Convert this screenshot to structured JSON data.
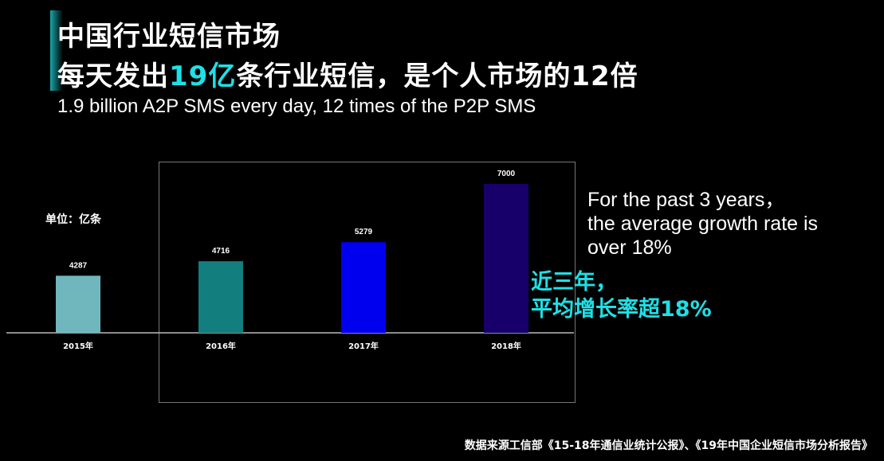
{
  "title": {
    "line1": "中国行业短信市场",
    "line2_pre": "每天发出",
    "line2_highlight": "19亿",
    "line2_post": "条行业短信，是个人市场的12倍",
    "subtitle": "1.9 billion A2P SMS every day, 12 times of the P2P SMS"
  },
  "growth_note": {
    "en_line1": "For the past 3 years，",
    "en_line2": "the average growth rate is",
    "en_line3": "over 18%",
    "cn_line1": "近三年，",
    "cn_line2": "平均增长率超18%"
  },
  "source": "数据来源工信部《15-18年通信业统计公报》、《19年中国企业短信市场分析报告》",
  "colors": {
    "highlight": "#1ee0e6",
    "bars": [
      "#6fb7bd",
      "#127e7e",
      "#0000ee",
      "#17006a"
    ]
  },
  "chart_data": {
    "type": "bar",
    "unit_label": "单位：亿条",
    "categories": [
      "2015年",
      "2016年",
      "2017年",
      "2018年"
    ],
    "values": [
      4287,
      4716,
      5279,
      7000
    ],
    "value_labels": [
      "4287",
      "4716",
      "5279",
      "7000"
    ],
    "ylim": [
      2600,
      7000
    ],
    "grid": false
  }
}
